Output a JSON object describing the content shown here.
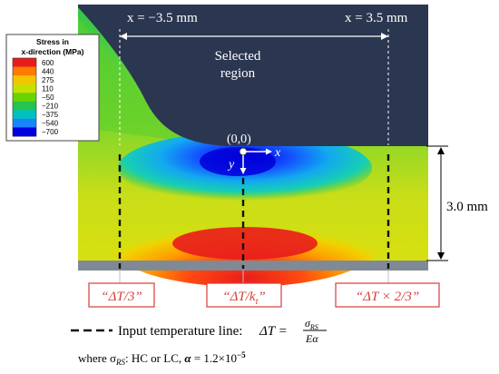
{
  "legend": {
    "title_line1": "Stress in",
    "title_line2": "x-direction (MPa)",
    "ticks": [
      "600",
      "440",
      "275",
      "110",
      "−50",
      "−210",
      "−375",
      "−540",
      "−700"
    ],
    "colors": [
      "#e81c1c",
      "#ff7a00",
      "#f5c400",
      "#c8e000",
      "#6ad400",
      "#26c44f",
      "#00c0c0",
      "#1a84ff",
      "#0000e0"
    ]
  },
  "annotations": {
    "x_left": "x = −3.5 mm",
    "x_right": "x = 3.5 mm",
    "selected_region_line1": "Selected",
    "selected_region_line2": "region",
    "origin": "(0,0)",
    "axis_x": "x",
    "axis_y": "y",
    "depth": "3.0 mm"
  },
  "labels": {
    "left": "“ΔT/3”",
    "center": "“ΔT/k",
    "center_sub": "t",
    "center_end": "”",
    "right": "“ΔT × 2/3”"
  },
  "formula": {
    "line_label": "Input temperature line:",
    "lhs": "ΔT =",
    "numerator": "σ",
    "numerator_sub": "RS",
    "denominator": "Eα",
    "where_prefix": "where σ",
    "where_sub": "RS",
    "where_rest": ": HC or LC, ",
    "alpha": "α",
    "alpha_rest": " = 1.2×10",
    "exponent": "−5"
  },
  "colors": {
    "selected_region": "#2b3650",
    "substrate": "#7f8a96",
    "label_border": "#d83b3b",
    "dashed_line": "#111111"
  }
}
